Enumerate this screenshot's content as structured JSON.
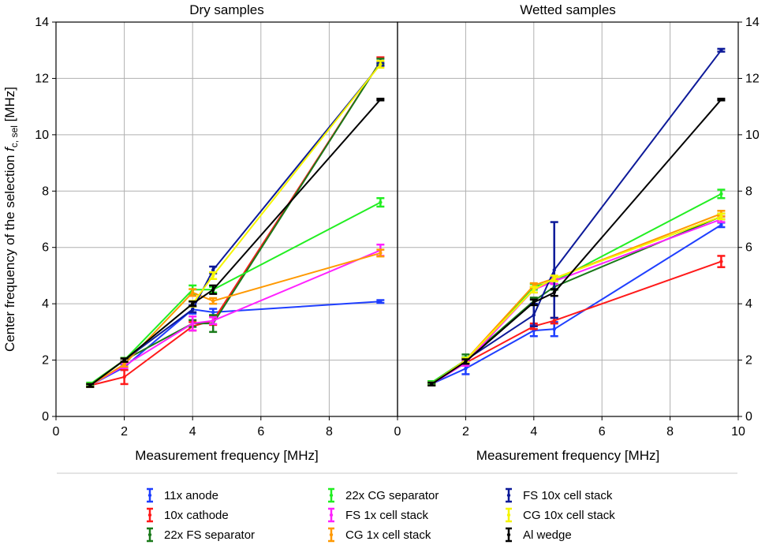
{
  "chart_data": [
    {
      "type": "line",
      "title": "Dry samples",
      "xlabel": "Measurement frequency [MHz]",
      "ylabel": "Center frequency of the selection ",
      "ylabel_symbol": "f",
      "ylabel_subscript": "c, sel",
      "ylabel_unit": " [MHz]",
      "xlim": [
        0,
        10
      ],
      "ylim": [
        0,
        14
      ],
      "xticks": [
        "0",
        "2",
        "4",
        "6",
        "8"
      ],
      "yticks": [
        "0",
        "2",
        "4",
        "6",
        "8",
        "10",
        "12",
        "14"
      ],
      "grid": true,
      "x": [
        1,
        2,
        4,
        4.6,
        9.5
      ],
      "series": [
        {
          "name": "11x anode",
          "color": "#1f3fff",
          "values": [
            1.1,
            1.75,
            3.8,
            3.7,
            4.08
          ],
          "errors": [
            0.05,
            0.1,
            0.15,
            0.12,
            0.05
          ]
        },
        {
          "name": "10x cathode",
          "color": "#ff1a1a",
          "values": [
            1.1,
            1.4,
            3.2,
            3.4,
            12.6
          ],
          "errors": [
            0.05,
            0.25,
            0.15,
            0.15,
            0.15
          ]
        },
        {
          "name": "22x FS separator",
          "color": "#1a7a1a",
          "values": [
            1.1,
            2.0,
            3.3,
            3.3,
            12.6
          ],
          "errors": [
            0.05,
            0.08,
            0.12,
            0.3,
            0.1
          ]
        },
        {
          "name": "22x CG separator",
          "color": "#22ee22",
          "values": [
            1.15,
            2.0,
            4.5,
            4.5,
            7.6
          ],
          "errors": [
            0.05,
            0.08,
            0.15,
            0.1,
            0.15
          ]
        },
        {
          "name": "FS 1x cell stack",
          "color": "#ff22ff",
          "values": [
            1.1,
            1.8,
            3.3,
            3.4,
            5.9
          ],
          "errors": [
            0.05,
            0.08,
            0.25,
            0.12,
            0.2
          ]
        },
        {
          "name": "CG 1x cell stack",
          "color": "#ff9900",
          "values": [
            1.1,
            1.85,
            4.4,
            4.1,
            5.8
          ],
          "errors": [
            0.05,
            0.08,
            0.12,
            0.1,
            0.12
          ]
        },
        {
          "name": "FS 10x cell stack",
          "color": "#0d1a99",
          "values": [
            1.1,
            2.0,
            3.8,
            5.2,
            12.5
          ],
          "errors": [
            0.05,
            0.06,
            0.1,
            0.12,
            0.05
          ]
        },
        {
          "name": "CG 10x cell stack",
          "color": "#f5f500",
          "values": [
            1.1,
            2.0,
            4.0,
            5.0,
            12.5
          ],
          "errors": [
            0.05,
            0.06,
            0.1,
            0.12,
            0.12
          ]
        },
        {
          "name": "Al wedge",
          "color": "#000000",
          "values": [
            1.1,
            2.0,
            4.0,
            4.5,
            11.25
          ],
          "errors": [
            0.05,
            0.06,
            0.08,
            0.15,
            0.03
          ]
        }
      ]
    },
    {
      "type": "line",
      "title": "Wetted samples",
      "xlabel": "Measurement frequency [MHz]",
      "xlim": [
        0,
        10
      ],
      "ylim": [
        0,
        14
      ],
      "xticks": [
        "0",
        "2",
        "4",
        "6",
        "8",
        "10"
      ],
      "yticks": [
        "0",
        "2",
        "4",
        "6",
        "8",
        "10",
        "12",
        "14"
      ],
      "grid": true,
      "x": [
        1,
        2,
        4,
        4.6,
        9.5
      ],
      "series": [
        {
          "name": "11x anode",
          "color": "#1f3fff",
          "values": [
            1.15,
            1.7,
            3.05,
            3.1,
            6.8
          ],
          "errors": [
            0.05,
            0.2,
            0.2,
            0.25,
            0.08
          ]
        },
        {
          "name": "10x cathode",
          "color": "#ff1a1a",
          "values": [
            1.15,
            1.9,
            3.2,
            3.4,
            5.5
          ],
          "errors": [
            0.05,
            0.1,
            0.1,
            0.1,
            0.2
          ]
        },
        {
          "name": "22x FS separator",
          "color": "#1a7a1a",
          "values": [
            1.2,
            2.0,
            4.1,
            4.6,
            7.1
          ],
          "errors": [
            0.05,
            0.2,
            0.12,
            0.1,
            0.1
          ]
        },
        {
          "name": "22x CG separator",
          "color": "#22ee22",
          "values": [
            1.2,
            2.0,
            4.6,
            4.8,
            7.9
          ],
          "errors": [
            0.05,
            0.1,
            0.1,
            0.1,
            0.15
          ]
        },
        {
          "name": "FS 1x cell stack",
          "color": "#ff22ff",
          "values": [
            1.15,
            1.9,
            4.5,
            4.8,
            7.0
          ],
          "errors": [
            0.05,
            0.1,
            0.1,
            0.1,
            0.1
          ]
        },
        {
          "name": "CG 1x cell stack",
          "color": "#ff9900",
          "values": [
            1.15,
            2.0,
            4.65,
            4.9,
            7.2
          ],
          "errors": [
            0.05,
            0.08,
            0.08,
            0.08,
            0.1
          ]
        },
        {
          "name": "FS 10x cell stack",
          "color": "#0d1a99",
          "values": [
            1.15,
            2.0,
            3.6,
            5.2,
            13.0
          ],
          "errors": [
            0.05,
            0.08,
            0.4,
            1.7,
            0.05
          ]
        },
        {
          "name": "CG 10x cell stack",
          "color": "#f5f500",
          "values": [
            1.15,
            2.0,
            4.5,
            4.9,
            7.1
          ],
          "errors": [
            0.05,
            0.08,
            0.1,
            0.1,
            0.1
          ]
        },
        {
          "name": "Al wedge",
          "color": "#000000",
          "values": [
            1.15,
            1.95,
            4.05,
            4.4,
            11.25
          ],
          "errors": [
            0.05,
            0.08,
            0.1,
            0.12,
            0.03
          ]
        }
      ]
    }
  ],
  "legend": {
    "placement": "bottom",
    "entries": [
      {
        "name": "11x anode",
        "color": "#1f3fff"
      },
      {
        "name": "10x cathode",
        "color": "#ff1a1a"
      },
      {
        "name": "22x FS separator",
        "color": "#1a7a1a"
      },
      {
        "name": "22x CG separator",
        "color": "#22ee22"
      },
      {
        "name": "FS 1x cell stack",
        "color": "#ff22ff"
      },
      {
        "name": "CG 1x cell stack",
        "color": "#ff9900"
      },
      {
        "name": "FS 10x cell stack",
        "color": "#0d1a99"
      },
      {
        "name": "CG 10x cell stack",
        "color": "#f5f500"
      },
      {
        "name": "Al wedge",
        "color": "#000000"
      }
    ]
  }
}
